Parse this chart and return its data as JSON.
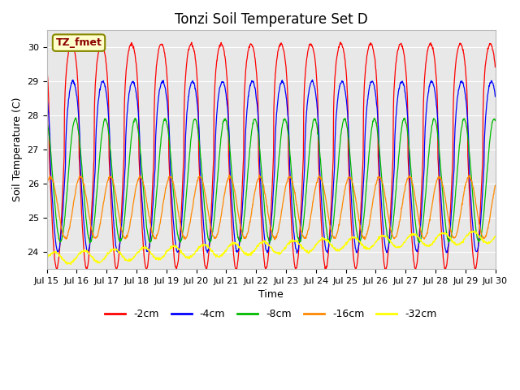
{
  "title": "Tonzi Soil Temperature Set D",
  "xlabel": "Time",
  "ylabel": "Soil Temperature (C)",
  "ylim": [
    23.5,
    30.5
  ],
  "xlim": [
    0,
    360
  ],
  "x_tick_labels": [
    "Jul 15",
    "Jul 16",
    "Jul 17",
    "Jul 18",
    "Jul 19",
    "Jul 20",
    "Jul 21",
    "Jul 22",
    "Jul 23",
    "Jul 24",
    "Jul 25",
    "Jul 26",
    "Jul 27",
    "Jul 28",
    "Jul 29",
    "Jul 30"
  ],
  "x_tick_positions": [
    0,
    24,
    48,
    72,
    96,
    120,
    144,
    168,
    192,
    216,
    240,
    264,
    288,
    312,
    336,
    360
  ],
  "series": [
    {
      "label": "-2cm",
      "color": "#FF0000",
      "base": 26.8,
      "amplitude": 3.3,
      "phase_hours": 14.0,
      "shape_power": 3,
      "attenuation": 0.0
    },
    {
      "label": "-4cm",
      "color": "#0000FF",
      "base": 26.5,
      "amplitude": 2.5,
      "phase_hours": 15.0,
      "shape_power": 2,
      "attenuation": 0.0
    },
    {
      "label": "-8cm",
      "color": "#00BB00",
      "base": 26.1,
      "amplitude": 1.8,
      "phase_hours": 17.0,
      "shape_power": 1,
      "attenuation": 0.0
    },
    {
      "label": "-16cm",
      "color": "#FF8800",
      "base": 25.3,
      "amplitude": 0.9,
      "phase_hours": 21.0,
      "shape_power": 1,
      "attenuation": 0.0
    },
    {
      "label": "-32cm",
      "color": "#FFFF00",
      "base": 23.8,
      "amplitude": 0.18,
      "phase_hours": 0.0,
      "shape_power": 1,
      "attenuation": 0.0,
      "trend": 0.65
    }
  ],
  "legend_label": "TZ_fmet",
  "legend_box_facecolor": "#FFFFCC",
  "legend_box_edgecolor": "#888800",
  "legend_text_color": "#8B0000",
  "plot_bg_color": "#E8E8E8",
  "fig_bg_color": "#FFFFFF",
  "grid_color": "#FFFFFF",
  "title_fontsize": 12,
  "axis_label_fontsize": 9,
  "tick_fontsize": 8,
  "legend_fontsize": 9
}
